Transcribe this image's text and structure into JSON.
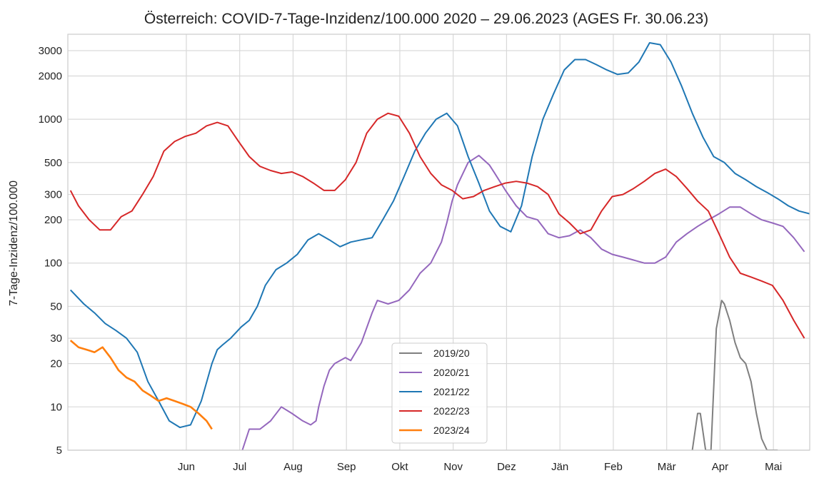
{
  "chart_data": {
    "type": "line",
    "title": "Österreich: COVID-7-Tage-Inzidenz/100.000 2020 – 29.06.2023 (AGES Fr. 30.06.23)",
    "xlabel": "",
    "ylabel": "7-Tage-Inzidenz/100.000",
    "yscale": "log",
    "ylim": [
      5,
      3900
    ],
    "xlim_day": [
      -1.8,
      10.1
    ],
    "x_unit": "month offset from 1 June (fractional)",
    "yticks": [
      5,
      10,
      20,
      30,
      50,
      100,
      200,
      300,
      500,
      1000,
      2000,
      3000
    ],
    "ytick_labels": [
      "5",
      "10",
      "20",
      "30",
      "50",
      "100",
      "200",
      "300",
      "500",
      "1000",
      "2000",
      "3000"
    ],
    "xticks": [
      0.5,
      1.5,
      2.5,
      3.5,
      4.5,
      5.5,
      6.5,
      7.5,
      8.5,
      9.5,
      10.5,
      11.5
    ],
    "xtick_labels": [
      "Jun",
      "Jul",
      "Aug",
      "Sep",
      "Okt",
      "Nov",
      "Dez",
      "Jän",
      "Feb",
      "Mär",
      "Apr",
      "Mai"
    ],
    "grid": true,
    "legend_position": "lower-center",
    "series": [
      {
        "name": "2019/20",
        "color": "#7f7f7f",
        "x": [
          9.9,
          10.0,
          10.05,
          10.15,
          10.25,
          10.35,
          10.45,
          10.5,
          10.6,
          10.7,
          10.8,
          10.9,
          11.0,
          11.1,
          11.2,
          11.3,
          11.4,
          11.5
        ],
        "y": [
          5,
          9,
          9,
          5,
          5,
          35,
          55,
          52,
          40,
          28,
          22,
          20,
          15,
          9,
          6,
          5,
          5,
          5
        ]
      },
      {
        "name": "2020/21",
        "color": "#9467bd",
        "x": [
          1.47,
          1.6,
          1.8,
          2.0,
          2.2,
          2.4,
          2.6,
          2.75,
          2.85,
          2.9,
          3.0,
          3.1,
          3.2,
          3.4,
          3.5,
          3.7,
          3.9,
          4.0,
          4.2,
          4.4,
          4.6,
          4.8,
          5.0,
          5.2,
          5.3,
          5.4,
          5.5,
          5.7,
          5.9,
          6.1,
          6.2,
          6.4,
          6.6,
          6.8,
          7.0,
          7.2,
          7.4,
          7.6,
          7.8,
          8.0,
          8.2,
          8.4,
          8.6,
          8.8,
          9.0,
          9.2,
          9.4,
          9.6,
          9.8,
          10.0,
          10.2,
          10.4,
          10.6,
          10.8,
          11.0,
          11.2,
          11.4,
          11.6,
          11.8,
          12.0
        ],
        "y": [
          5,
          7,
          7,
          8,
          10,
          9,
          8,
          7.5,
          8,
          10,
          14,
          18,
          20,
          22,
          21,
          28,
          45,
          55,
          52,
          55,
          65,
          85,
          100,
          140,
          190,
          270,
          350,
          500,
          560,
          480,
          420,
          320,
          250,
          210,
          200,
          160,
          150,
          155,
          170,
          150,
          125,
          115,
          110,
          105,
          100,
          100,
          110,
          140,
          160,
          180,
          200,
          220,
          245,
          245,
          220,
          200,
          190,
          180,
          150,
          120
        ]
      },
      {
        "name": "2021/22",
        "color": "#1f77b4",
        "x": [
          -1.75,
          -1.5,
          -1.3,
          -1.1,
          -0.9,
          -0.7,
          -0.5,
          -0.3,
          -0.1,
          0.1,
          0.3,
          0.5,
          0.7,
          0.9,
          1.0,
          1.1,
          1.25,
          1.45,
          1.6,
          1.75,
          1.9,
          2.1,
          2.3,
          2.5,
          2.7,
          2.9,
          3.1,
          3.3,
          3.5,
          3.7,
          3.9,
          4.1,
          4.3,
          4.5,
          4.7,
          4.9,
          5.1,
          5.3,
          5.5,
          5.7,
          5.9,
          6.1,
          6.3,
          6.5,
          6.7,
          6.9,
          7.1,
          7.3,
          7.5,
          7.7,
          7.9,
          8.1,
          8.3,
          8.5,
          8.7,
          8.9,
          9.1,
          9.3,
          9.5,
          9.7,
          9.9,
          10.1,
          10.3,
          10.5,
          10.7,
          10.9,
          11.1,
          11.3,
          11.5,
          11.7,
          11.9,
          12.1
        ],
        "y": [
          65,
          52,
          45,
          38,
          34,
          30,
          24,
          15,
          11,
          8,
          7.2,
          7.5,
          11,
          20,
          25,
          27,
          30,
          36,
          40,
          50,
          70,
          90,
          100,
          115,
          145,
          160,
          145,
          130,
          140,
          145,
          150,
          200,
          270,
          400,
          600,
          800,
          1000,
          1100,
          900,
          550,
          360,
          230,
          180,
          165,
          250,
          550,
          1000,
          1500,
          2200,
          2600,
          2600,
          2400,
          2200,
          2050,
          2100,
          2500,
          3400,
          3300,
          2500,
          1700,
          1100,
          750,
          550,
          500,
          420,
          380,
          340,
          310,
          280,
          250,
          230,
          220
        ]
      },
      {
        "name": "2022/23",
        "color": "#d62728",
        "x": [
          -1.75,
          -1.6,
          -1.4,
          -1.2,
          -1.0,
          -0.8,
          -0.6,
          -0.4,
          -0.2,
          0.0,
          0.2,
          0.4,
          0.6,
          0.8,
          1.0,
          1.2,
          1.4,
          1.6,
          1.8,
          2.0,
          2.2,
          2.4,
          2.6,
          2.8,
          3.0,
          3.2,
          3.4,
          3.6,
          3.8,
          4.0,
          4.2,
          4.4,
          4.6,
          4.8,
          5.0,
          5.2,
          5.4,
          5.6,
          5.8,
          6.0,
          6.2,
          6.4,
          6.6,
          6.8,
          7.0,
          7.2,
          7.4,
          7.6,
          7.8,
          8.0,
          8.2,
          8.4,
          8.6,
          8.8,
          9.0,
          9.2,
          9.4,
          9.6,
          9.8,
          10.0,
          10.2,
          10.4,
          10.6,
          10.8,
          11.0,
          11.2,
          11.4,
          11.6,
          11.8,
          12.0
        ],
        "y": [
          320,
          250,
          200,
          170,
          170,
          210,
          230,
          300,
          400,
          600,
          700,
          760,
          800,
          900,
          950,
          900,
          700,
          550,
          470,
          440,
          420,
          430,
          400,
          360,
          320,
          320,
          380,
          500,
          800,
          1000,
          1100,
          1050,
          800,
          550,
          420,
          350,
          320,
          280,
          290,
          320,
          340,
          360,
          370,
          360,
          340,
          300,
          220,
          190,
          160,
          170,
          230,
          290,
          300,
          330,
          370,
          420,
          450,
          400,
          330,
          270,
          230,
          160,
          110,
          85,
          80,
          75,
          70,
          55,
          40,
          30
        ]
      },
      {
        "name": "2023/24",
        "color": "#ff7f0e",
        "x": [
          -1.75,
          -1.6,
          -1.45,
          -1.3,
          -1.15,
          -1.0,
          -0.85,
          -0.7,
          -0.55,
          -0.4,
          -0.25,
          -0.1,
          0.05,
          0.2,
          0.35,
          0.5,
          0.65,
          0.8,
          0.9
        ],
        "y": [
          29,
          26,
          25,
          24,
          26,
          22,
          18,
          16,
          15,
          13,
          12,
          11,
          11.5,
          11,
          10.5,
          10,
          9,
          8,
          7
        ]
      }
    ]
  }
}
